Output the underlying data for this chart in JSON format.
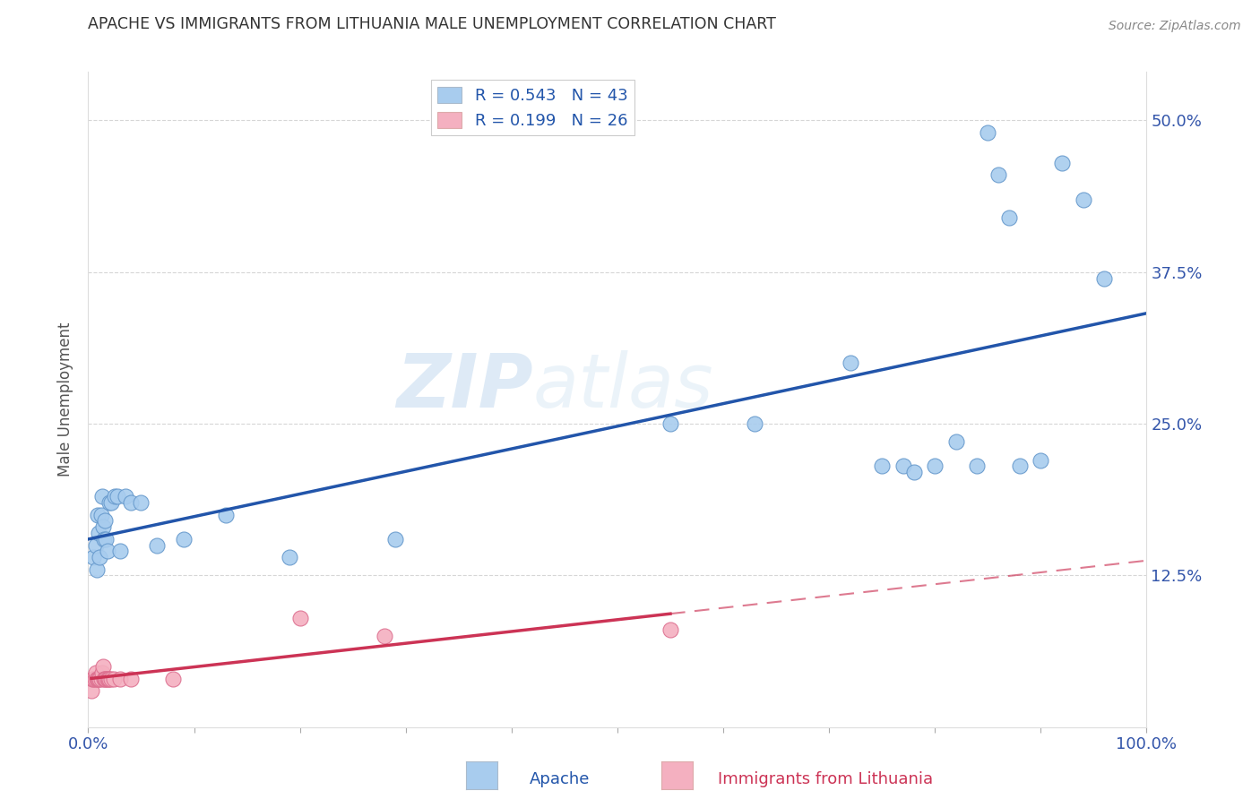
{
  "title": "APACHE VS IMMIGRANTS FROM LITHUANIA MALE UNEMPLOYMENT CORRELATION CHART",
  "source": "Source: ZipAtlas.com",
  "ylabel": "Male Unemployment",
  "xlim": [
    0.0,
    1.0
  ],
  "ylim": [
    0.0,
    0.54
  ],
  "xticks": [
    0.0,
    0.1,
    0.2,
    0.3,
    0.4,
    0.5,
    0.6,
    0.7,
    0.8,
    0.9,
    1.0
  ],
  "xticklabels": [
    "0.0%",
    "",
    "",
    "",
    "",
    "",
    "",
    "",
    "",
    "",
    "100.0%"
  ],
  "yticks": [
    0.0,
    0.125,
    0.25,
    0.375,
    0.5
  ],
  "yticklabels": [
    "",
    "12.5%",
    "25.0%",
    "37.5%",
    "50.0%"
  ],
  "apache_color": "#a8ccee",
  "apache_edge_color": "#6699cc",
  "lithuania_color": "#f4b0c0",
  "lithuania_edge_color": "#dd7090",
  "apache_line_color": "#2255aa",
  "lithuania_line_color": "#cc3355",
  "legend_R_apache": "R = 0.543",
  "legend_N_apache": "N = 43",
  "legend_R_lithuania": "R = 0.199",
  "legend_N_lithuania": "N = 26",
  "watermark_zip": "ZIP",
  "watermark_atlas": "atlas",
  "apache_x": [
    0.005,
    0.007,
    0.008,
    0.009,
    0.01,
    0.011,
    0.012,
    0.013,
    0.014,
    0.015,
    0.016,
    0.017,
    0.018,
    0.02,
    0.022,
    0.025,
    0.028,
    0.03,
    0.035,
    0.04,
    0.05,
    0.065,
    0.09,
    0.13,
    0.19,
    0.29,
    0.55,
    0.63,
    0.72,
    0.75,
    0.77,
    0.78,
    0.8,
    0.82,
    0.84,
    0.85,
    0.86,
    0.87,
    0.88,
    0.9,
    0.92,
    0.94,
    0.96
  ],
  "apache_y": [
    0.14,
    0.15,
    0.13,
    0.175,
    0.16,
    0.14,
    0.175,
    0.19,
    0.165,
    0.155,
    0.17,
    0.155,
    0.145,
    0.185,
    0.185,
    0.19,
    0.19,
    0.145,
    0.19,
    0.185,
    0.185,
    0.15,
    0.155,
    0.175,
    0.14,
    0.155,
    0.25,
    0.25,
    0.3,
    0.215,
    0.215,
    0.21,
    0.215,
    0.235,
    0.215,
    0.49,
    0.455,
    0.42,
    0.215,
    0.22,
    0.465,
    0.435,
    0.37
  ],
  "lithuania_x": [
    0.003,
    0.004,
    0.005,
    0.006,
    0.007,
    0.008,
    0.009,
    0.01,
    0.011,
    0.012,
    0.013,
    0.014,
    0.015,
    0.016,
    0.017,
    0.018,
    0.019,
    0.02,
    0.022,
    0.024,
    0.03,
    0.04,
    0.08,
    0.2,
    0.28,
    0.55
  ],
  "lithuania_y": [
    0.03,
    0.04,
    0.04,
    0.04,
    0.045,
    0.04,
    0.04,
    0.04,
    0.04,
    0.04,
    0.045,
    0.05,
    0.04,
    0.04,
    0.04,
    0.04,
    0.04,
    0.04,
    0.04,
    0.04,
    0.04,
    0.04,
    0.04,
    0.09,
    0.075,
    0.08
  ],
  "background_color": "#ffffff",
  "grid_color": "#cccccc",
  "title_color": "#333333",
  "source_color": "#888888",
  "tick_color": "#3355aa",
  "ylabel_color": "#555555"
}
